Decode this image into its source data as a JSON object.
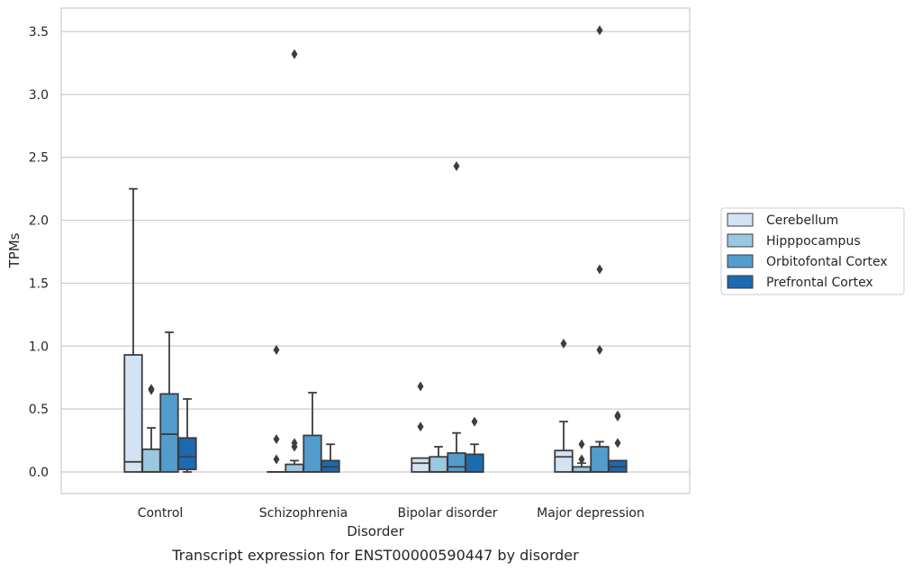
{
  "chart_data": {
    "type": "box",
    "title": "",
    "caption": "Transcript expression for ENST00000590447 by disorder",
    "xlabel": "Disorder",
    "ylabel": "TPMs",
    "ylim": [
      -0.17,
      3.68
    ],
    "yticks": [
      "0.0",
      "0.5",
      "1.0",
      "1.5",
      "2.0",
      "2.5",
      "3.0",
      "3.5"
    ],
    "ytick_values": [
      0,
      0.5,
      1.0,
      1.5,
      2.0,
      2.5,
      3.0,
      3.5
    ],
    "grid": "horizontal",
    "legend_placement": "right",
    "categories": [
      "Control",
      "Schizophrenia",
      "Bipolar disorder",
      "Major depression"
    ],
    "series": [
      {
        "name": "Cerebellum",
        "color": "#d3e3f3",
        "boxes": [
          {
            "q1": 0.0,
            "median": 0.08,
            "q3": 0.93,
            "whisker_low": 0.0,
            "whisker_high": 2.25,
            "outliers": []
          },
          {
            "q1": 0.0,
            "median": 0.0,
            "q3": 0.0,
            "whisker_low": 0.0,
            "whisker_high": 0.0,
            "outliers": [
              0.1,
              0.26,
              0.97
            ]
          },
          {
            "q1": 0.0,
            "median": 0.07,
            "q3": 0.11,
            "whisker_low": 0.0,
            "whisker_high": 0.11,
            "outliers": [
              0.36,
              0.68
            ]
          },
          {
            "q1": 0.0,
            "median": 0.12,
            "q3": 0.17,
            "whisker_low": 0.0,
            "whisker_high": 0.4,
            "outliers": [
              1.02
            ]
          }
        ]
      },
      {
        "name": "Hipppocampus",
        "color": "#9ac8e0",
        "boxes": [
          {
            "q1": 0.0,
            "median": 0.0,
            "q3": 0.18,
            "whisker_low": 0.0,
            "whisker_high": 0.35,
            "outliers": [
              0.65,
              0.66
            ]
          },
          {
            "q1": 0.0,
            "median": 0.0,
            "q3": 0.06,
            "whisker_low": 0.0,
            "whisker_high": 0.09,
            "outliers": [
              0.2,
              0.23,
              3.32
            ]
          },
          {
            "q1": 0.0,
            "median": 0.0,
            "q3": 0.12,
            "whisker_low": 0.0,
            "whisker_high": 0.2,
            "outliers": []
          },
          {
            "q1": 0.0,
            "median": 0.0,
            "q3": 0.04,
            "whisker_low": 0.0,
            "whisker_high": 0.07,
            "outliers": [
              0.1,
              0.22
            ]
          }
        ]
      },
      {
        "name": "Orbitofontal Cortex",
        "color": "#529dcc",
        "boxes": [
          {
            "q1": 0.0,
            "median": 0.3,
            "q3": 0.62,
            "whisker_low": 0.0,
            "whisker_high": 1.11,
            "outliers": []
          },
          {
            "q1": 0.0,
            "median": 0.0,
            "q3": 0.29,
            "whisker_low": 0.0,
            "whisker_high": 0.63,
            "outliers": []
          },
          {
            "q1": 0.0,
            "median": 0.04,
            "q3": 0.15,
            "whisker_low": 0.0,
            "whisker_high": 0.31,
            "outliers": [
              2.43
            ]
          },
          {
            "q1": 0.0,
            "median": 0.0,
            "q3": 0.2,
            "whisker_low": 0.0,
            "whisker_high": 0.24,
            "outliers": [
              0.97,
              1.61,
              3.51
            ]
          }
        ]
      },
      {
        "name": "Prefrontal Cortex",
        "color": "#1c6aaf",
        "boxes": [
          {
            "q1": 0.02,
            "median": 0.12,
            "q3": 0.27,
            "whisker_low": 0.0,
            "whisker_high": 0.58,
            "outliers": []
          },
          {
            "q1": 0.0,
            "median": 0.04,
            "q3": 0.09,
            "whisker_low": 0.0,
            "whisker_high": 0.22,
            "outliers": []
          },
          {
            "q1": 0.0,
            "median": 0.0,
            "q3": 0.14,
            "whisker_low": 0.0,
            "whisker_high": 0.22,
            "outliers": [
              0.4
            ]
          },
          {
            "q1": 0.0,
            "median": 0.04,
            "q3": 0.09,
            "whisker_low": 0.0,
            "whisker_high": 0.09,
            "outliers": [
              0.23,
              0.44,
              0.45
            ]
          }
        ]
      }
    ]
  }
}
